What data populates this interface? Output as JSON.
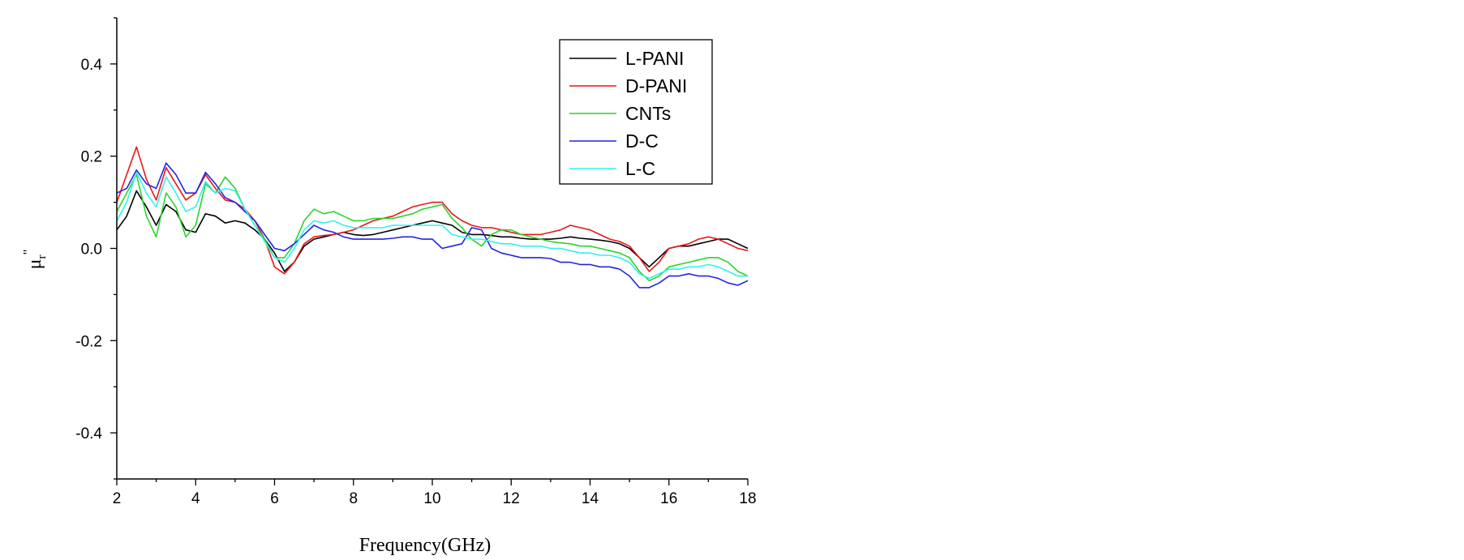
{
  "chart_data": {
    "type": "line",
    "title": "",
    "xlabel": "Frequency(GHz)",
    "ylabel": "μr\"",
    "ylabel_main": "μ",
    "ylabel_sub": "r",
    "ylabel_sup": "\"",
    "xlim": [
      2,
      18
    ],
    "ylim": [
      -0.5,
      0.5
    ],
    "x_ticks": [
      2,
      4,
      6,
      8,
      10,
      12,
      14,
      16,
      18
    ],
    "x_tick_labels": [
      "2",
      "4",
      "6",
      "8",
      "10",
      "12",
      "14",
      "16",
      "18"
    ],
    "y_ticks": [
      -0.4,
      -0.2,
      0.0,
      0.2,
      0.4
    ],
    "y_tick_labels": [
      "-0.4",
      "-0.2",
      "0.0",
      "0.2",
      "0.4"
    ],
    "grid": false,
    "legend_position": "top-right",
    "x": [
      2.0,
      2.25,
      2.5,
      2.75,
      3.0,
      3.25,
      3.5,
      3.75,
      4.0,
      4.25,
      4.5,
      4.75,
      5.0,
      5.25,
      5.5,
      5.75,
      6.0,
      6.25,
      6.5,
      6.75,
      7.0,
      7.25,
      7.5,
      7.75,
      8.0,
      8.25,
      8.5,
      8.75,
      9.0,
      9.25,
      9.5,
      9.75,
      10.0,
      10.25,
      10.5,
      10.75,
      11.0,
      11.25,
      11.5,
      11.75,
      12.0,
      12.25,
      12.5,
      12.75,
      13.0,
      13.25,
      13.5,
      13.75,
      14.0,
      14.25,
      14.5,
      14.75,
      15.0,
      15.25,
      15.5,
      15.75,
      16.0,
      16.25,
      16.5,
      16.75,
      17.0,
      17.25,
      17.5,
      17.75,
      18.0
    ],
    "series": [
      {
        "name": "L-PANI",
        "color": "#000000",
        "values": [
          0.04,
          0.07,
          0.125,
          0.09,
          0.05,
          0.095,
          0.08,
          0.04,
          0.035,
          0.075,
          0.07,
          0.055,
          0.06,
          0.055,
          0.04,
          0.02,
          -0.01,
          -0.05,
          -0.03,
          0.005,
          0.02,
          0.025,
          0.03,
          0.035,
          0.03,
          0.028,
          0.03,
          0.035,
          0.04,
          0.045,
          0.05,
          0.055,
          0.06,
          0.055,
          0.05,
          0.035,
          0.03,
          0.03,
          0.028,
          0.025,
          0.025,
          0.022,
          0.02,
          0.02,
          0.02,
          0.022,
          0.025,
          0.022,
          0.02,
          0.018,
          0.015,
          0.01,
          0.0,
          -0.02,
          -0.04,
          -0.02,
          0.0,
          0.005,
          0.005,
          0.01,
          0.015,
          0.02,
          0.02,
          0.01,
          0.0
        ]
      },
      {
        "name": "D-PANI",
        "color": "#e8161a",
        "values": [
          0.1,
          0.16,
          0.22,
          0.15,
          0.105,
          0.175,
          0.14,
          0.105,
          0.12,
          0.16,
          0.13,
          0.105,
          0.1,
          0.085,
          0.06,
          0.02,
          -0.04,
          -0.055,
          -0.03,
          0.01,
          0.025,
          0.028,
          0.03,
          0.035,
          0.04,
          0.05,
          0.06,
          0.065,
          0.07,
          0.08,
          0.09,
          0.095,
          0.1,
          0.1,
          0.075,
          0.06,
          0.05,
          0.045,
          0.045,
          0.04,
          0.035,
          0.03,
          0.03,
          0.03,
          0.035,
          0.04,
          0.05,
          0.045,
          0.04,
          0.03,
          0.02,
          0.015,
          0.005,
          -0.02,
          -0.05,
          -0.03,
          0.0,
          0.005,
          0.01,
          0.02,
          0.025,
          0.02,
          0.01,
          0.0,
          -0.005
        ]
      },
      {
        "name": "CNTs",
        "color": "#2bd42b",
        "values": [
          0.08,
          0.12,
          0.16,
          0.07,
          0.025,
          0.12,
          0.09,
          0.025,
          0.05,
          0.14,
          0.12,
          0.155,
          0.13,
          0.085,
          0.05,
          0.02,
          -0.02,
          -0.02,
          0.01,
          0.06,
          0.085,
          0.075,
          0.08,
          0.07,
          0.06,
          0.06,
          0.065,
          0.065,
          0.065,
          0.07,
          0.075,
          0.085,
          0.09,
          0.095,
          0.065,
          0.045,
          0.02,
          0.005,
          0.03,
          0.04,
          0.04,
          0.03,
          0.025,
          0.02,
          0.015,
          0.012,
          0.01,
          0.005,
          0.005,
          0.0,
          -0.005,
          -0.01,
          -0.02,
          -0.05,
          -0.07,
          -0.06,
          -0.04,
          -0.035,
          -0.03,
          -0.025,
          -0.02,
          -0.02,
          -0.03,
          -0.05,
          -0.06
        ]
      },
      {
        "name": "D-C",
        "color": "#2424e0",
        "values": [
          0.12,
          0.13,
          0.17,
          0.14,
          0.13,
          0.185,
          0.16,
          0.12,
          0.12,
          0.165,
          0.14,
          0.11,
          0.1,
          0.08,
          0.06,
          0.03,
          0.0,
          -0.005,
          0.01,
          0.03,
          0.05,
          0.04,
          0.035,
          0.025,
          0.02,
          0.02,
          0.02,
          0.02,
          0.022,
          0.025,
          0.025,
          0.02,
          0.02,
          0.0,
          0.005,
          0.01,
          0.045,
          0.04,
          0.0,
          -0.01,
          -0.015,
          -0.02,
          -0.02,
          -0.02,
          -0.022,
          -0.03,
          -0.03,
          -0.035,
          -0.035,
          -0.04,
          -0.04,
          -0.045,
          -0.06,
          -0.085,
          -0.085,
          -0.075,
          -0.06,
          -0.06,
          -0.055,
          -0.06,
          -0.06,
          -0.065,
          -0.075,
          -0.08,
          -0.07
        ]
      },
      {
        "name": "L-C",
        "color": "#33f0f0",
        "values": [
          0.06,
          0.1,
          0.165,
          0.12,
          0.09,
          0.155,
          0.12,
          0.08,
          0.09,
          0.145,
          0.12,
          0.13,
          0.125,
          0.085,
          0.05,
          0.015,
          -0.02,
          -0.03,
          0.0,
          0.04,
          0.06,
          0.055,
          0.06,
          0.05,
          0.045,
          0.045,
          0.045,
          0.045,
          0.05,
          0.05,
          0.05,
          0.05,
          0.05,
          0.05,
          0.03,
          0.025,
          0.02,
          0.02,
          0.015,
          0.01,
          0.01,
          0.005,
          0.005,
          0.005,
          0.0,
          0.0,
          -0.005,
          -0.01,
          -0.01,
          -0.015,
          -0.015,
          -0.02,
          -0.03,
          -0.055,
          -0.065,
          -0.055,
          -0.045,
          -0.045,
          -0.04,
          -0.04,
          -0.035,
          -0.04,
          -0.05,
          -0.06,
          -0.06
        ]
      }
    ]
  }
}
